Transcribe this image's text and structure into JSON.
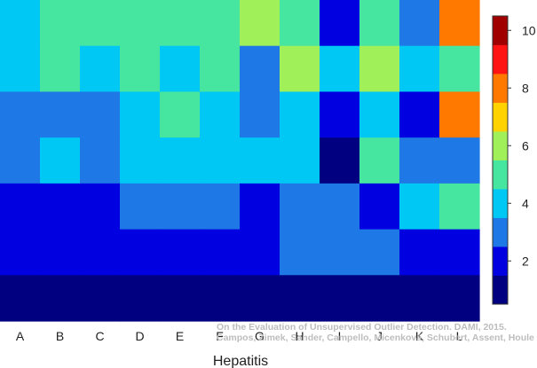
{
  "chart_data": {
    "type": "heatmap",
    "xlabel": "Hepatitis",
    "ylabel": "",
    "title": "",
    "columns": [
      "A",
      "B",
      "C",
      "D",
      "E",
      "F",
      "G",
      "H",
      "I",
      "J",
      "K",
      "L"
    ],
    "rows": 7,
    "values": [
      [
        4,
        5,
        5,
        5,
        5,
        5,
        6,
        5,
        2,
        5,
        3,
        8
      ],
      [
        4,
        5,
        4,
        5,
        4,
        5,
        3,
        6,
        4,
        6,
        4,
        5
      ],
      [
        3,
        3,
        3,
        4,
        5,
        4,
        3,
        4,
        2,
        4,
        2,
        8
      ],
      [
        3,
        4,
        3,
        4,
        4,
        4,
        4,
        4,
        1,
        5,
        3,
        3
      ],
      [
        2,
        2,
        2,
        3,
        3,
        3,
        2,
        3,
        3,
        2,
        4,
        5
      ],
      [
        2,
        2,
        2,
        2,
        2,
        2,
        2,
        3,
        3,
        3,
        2,
        2
      ],
      [
        1,
        1,
        1,
        1,
        1,
        1,
        1,
        1,
        1,
        1,
        1,
        1
      ]
    ],
    "colorbar": {
      "min": 0.5,
      "max": 10.5,
      "ticks": [
        2,
        4,
        6,
        8,
        10
      ],
      "tick_labels": [
        "2",
        "4",
        "6",
        "8",
        "10"
      ],
      "colors": [
        "#000080",
        "#0000e0",
        "#1e78e6",
        "#00c8f5",
        "#46e6a0",
        "#a0f05a",
        "#ffd200",
        "#ff7800",
        "#ff1414",
        "#a00000"
      ]
    },
    "watermark": [
      "On the Evaluation of Unsupervised Outlier Detection. DAMI, 2015.",
      "Campos, Zimek, Sander, Campello, Micenková, Schubert, Assent, Houle"
    ]
  }
}
